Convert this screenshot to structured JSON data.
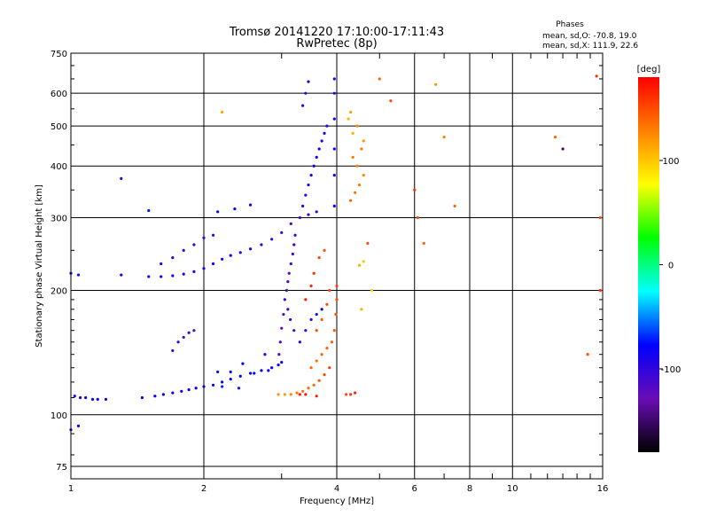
{
  "chart_data": {
    "type": "scatter",
    "title": "Tromsø 20141220 17:10:00-17:11:43",
    "subtitle": "RwPretec (8p)",
    "xlabel": "Frequency [MHz]",
    "ylabel": "Stationary phase Virtual Height [km]",
    "x_scale": "log",
    "y_scale": "log",
    "xlim": [
      1,
      16
    ],
    "ylim": [
      70,
      750
    ],
    "x_ticks": [
      1,
      2,
      4,
      6,
      8,
      10,
      16
    ],
    "x_minor_ticks": [
      3,
      5,
      7,
      9,
      11,
      12,
      13,
      14,
      15
    ],
    "y_ticks": [
      75,
      100,
      200,
      300,
      400,
      500,
      600,
      750
    ],
    "grid": true,
    "phases": {
      "header": "Phases",
      "o_line": "mean, sd,O: -70.8, 19.0",
      "x_line": "mean, sd,X: 111.9, 22.6"
    },
    "colorbar": {
      "label": "[deg]",
      "range": [
        -180,
        180
      ],
      "ticks": [
        -100,
        0,
        100
      ],
      "colormap": "rainbow",
      "colors": [
        "#000000",
        "#6a0cb4",
        "#0000ff",
        "#00ffff",
        "#00ff00",
        "#ffff00",
        "#ff8000",
        "#ff0000"
      ]
    },
    "series": [
      {
        "name": "O",
        "points": [
          [
            1.02,
            111,
            -88
          ],
          [
            1.05,
            110,
            -85
          ],
          [
            1.08,
            110,
            -82
          ],
          [
            1.12,
            109,
            -80
          ],
          [
            1.15,
            109,
            -83
          ],
          [
            1.2,
            109,
            -86
          ],
          [
            1.45,
            110,
            -80
          ],
          [
            1.55,
            111,
            -78
          ],
          [
            1.62,
            112,
            -80
          ],
          [
            1.7,
            113,
            -82
          ],
          [
            1.78,
            114,
            -79
          ],
          [
            1.85,
            115,
            -80
          ],
          [
            1.92,
            116,
            -82
          ],
          [
            2.0,
            117,
            -78
          ],
          [
            2.1,
            118,
            -80
          ],
          [
            2.2,
            120,
            -79
          ],
          [
            2.3,
            122,
            -81
          ],
          [
            2.42,
            124,
            -80
          ],
          [
            2.55,
            126,
            -78
          ],
          [
            2.7,
            128,
            -79
          ],
          [
            2.85,
            130,
            -82
          ],
          [
            2.95,
            132,
            -80
          ],
          [
            3.0,
            134,
            -83
          ],
          [
            2.8,
            128,
            -82
          ],
          [
            2.6,
            126,
            -80
          ],
          [
            2.3,
            127,
            -78
          ],
          [
            2.15,
            127,
            -80
          ],
          [
            2.45,
            133,
            -77
          ],
          [
            2.75,
            140,
            -75
          ],
          [
            1.0,
            220,
            -75
          ],
          [
            1.04,
            218,
            -73
          ],
          [
            1.3,
            218,
            -80
          ],
          [
            1.5,
            216,
            -84
          ],
          [
            1.6,
            216,
            -86
          ],
          [
            1.7,
            217,
            -88
          ],
          [
            1.8,
            219,
            -90
          ],
          [
            1.9,
            222,
            -87
          ],
          [
            2.0,
            226,
            -85
          ],
          [
            2.1,
            232,
            -83
          ],
          [
            2.2,
            238,
            -82
          ],
          [
            2.3,
            243,
            -85
          ],
          [
            2.42,
            247,
            -87
          ],
          [
            2.55,
            252,
            -90
          ],
          [
            2.7,
            258,
            -92
          ],
          [
            2.85,
            266,
            -100
          ],
          [
            3.0,
            276,
            -105
          ],
          [
            3.15,
            290,
            -108
          ],
          [
            3.3,
            300,
            -110
          ],
          [
            3.45,
            305,
            -108
          ],
          [
            3.6,
            310,
            -104
          ],
          [
            1.7,
            240,
            -95
          ],
          [
            1.8,
            250,
            -100
          ],
          [
            1.9,
            258,
            -102
          ],
          [
            2.0,
            268,
            -98
          ],
          [
            2.1,
            272,
            -97
          ],
          [
            1.6,
            232,
            -90
          ],
          [
            2.15,
            310,
            -75
          ],
          [
            2.35,
            315,
            -78
          ],
          [
            2.55,
            322,
            -80
          ],
          [
            1.5,
            312,
            -72
          ],
          [
            1.3,
            373,
            -95
          ],
          [
            3.05,
            190,
            -110
          ],
          [
            3.08,
            200,
            -112
          ],
          [
            3.1,
            210,
            -115
          ],
          [
            3.12,
            220,
            -118
          ],
          [
            3.15,
            232,
            -112
          ],
          [
            3.18,
            245,
            -110
          ],
          [
            3.2,
            258,
            -105
          ],
          [
            3.22,
            272,
            -102
          ],
          [
            3.03,
            175,
            -115
          ],
          [
            3.0,
            162,
            -118
          ],
          [
            2.98,
            150,
            -120
          ],
          [
            2.96,
            140,
            -115
          ],
          [
            3.1,
            180,
            -105
          ],
          [
            3.14,
            170,
            -100
          ],
          [
            3.2,
            160,
            -110
          ],
          [
            3.3,
            150,
            -100
          ],
          [
            3.4,
            160,
            -95
          ],
          [
            3.5,
            170,
            -90
          ],
          [
            3.6,
            175,
            -85
          ],
          [
            3.7,
            180,
            -80
          ],
          [
            3.35,
            320,
            -95
          ],
          [
            3.4,
            340,
            -100
          ],
          [
            3.45,
            360,
            -90
          ],
          [
            3.5,
            380,
            -85
          ],
          [
            3.55,
            400,
            -80
          ],
          [
            3.6,
            420,
            -82
          ],
          [
            3.65,
            440,
            -85
          ],
          [
            3.7,
            460,
            -88
          ],
          [
            3.75,
            480,
            -90
          ],
          [
            3.8,
            500,
            -92
          ],
          [
            3.35,
            560,
            -95
          ],
          [
            3.4,
            600,
            -100
          ],
          [
            3.45,
            640,
            -98
          ],
          [
            3.95,
            320,
            -78
          ],
          [
            3.95,
            380,
            -80
          ],
          [
            3.95,
            440,
            -82
          ],
          [
            3.95,
            520,
            -85
          ],
          [
            3.95,
            600,
            -88
          ],
          [
            3.95,
            650,
            -90
          ],
          [
            1.8,
            154,
            -105
          ],
          [
            1.85,
            158,
            -108
          ],
          [
            1.9,
            160,
            -110
          ],
          [
            1.7,
            143,
            -100
          ],
          [
            1.75,
            150,
            -102
          ],
          [
            2.2,
            117,
            -70
          ],
          [
            2.4,
            116,
            -72
          ],
          [
            1.0,
            92,
            -80
          ],
          [
            1.04,
            94,
            -78
          ]
        ]
      },
      {
        "name": "X",
        "points": [
          [
            2.95,
            112,
            120
          ],
          [
            3.05,
            112,
            118
          ],
          [
            3.15,
            112,
            125
          ],
          [
            3.25,
            113,
            130
          ],
          [
            3.35,
            114,
            135
          ],
          [
            3.45,
            116,
            138
          ],
          [
            3.55,
            118,
            140
          ],
          [
            3.65,
            121,
            145
          ],
          [
            3.75,
            125,
            150
          ],
          [
            3.85,
            130,
            155
          ],
          [
            3.5,
            130,
            140
          ],
          [
            3.6,
            135,
            135
          ],
          [
            3.7,
            140,
            140
          ],
          [
            3.8,
            145,
            138
          ],
          [
            3.9,
            150,
            142
          ],
          [
            3.95,
            160,
            145
          ],
          [
            3.98,
            175,
            148
          ],
          [
            4.0,
            190,
            150
          ],
          [
            4.0,
            205,
            155
          ],
          [
            3.6,
            160,
            150
          ],
          [
            3.7,
            170,
            148
          ],
          [
            3.8,
            185,
            150
          ],
          [
            3.85,
            200,
            152
          ],
          [
            3.4,
            190,
            170
          ],
          [
            3.5,
            205,
            165
          ],
          [
            3.55,
            220,
            160
          ],
          [
            3.65,
            240,
            150
          ],
          [
            3.75,
            250,
            145
          ],
          [
            4.3,
            330,
            140
          ],
          [
            4.4,
            345,
            135
          ],
          [
            4.5,
            360,
            130
          ],
          [
            4.6,
            380,
            125
          ],
          [
            4.45,
            400,
            128
          ],
          [
            4.35,
            420,
            132
          ],
          [
            4.55,
            440,
            130
          ],
          [
            4.6,
            460,
            120
          ],
          [
            4.35,
            480,
            110
          ],
          [
            4.45,
            500,
            125
          ],
          [
            4.25,
            520,
            105
          ],
          [
            4.3,
            540,
            115
          ],
          [
            4.6,
            235,
            100
          ],
          [
            4.5,
            230,
            110
          ],
          [
            4.55,
            180,
            110
          ],
          [
            4.2,
            112,
            150
          ],
          [
            4.3,
            112,
            160
          ],
          [
            4.4,
            113,
            165
          ],
          [
            3.3,
            112,
            170
          ],
          [
            3.4,
            112,
            172
          ],
          [
            3.6,
            111,
            168
          ],
          [
            2.2,
            540,
            115
          ],
          [
            4.8,
            200,
            95
          ],
          [
            4.7,
            260,
            150
          ],
          [
            5.0,
            650,
            140
          ],
          [
            5.3,
            575,
            150
          ],
          [
            6.0,
            350,
            160
          ],
          [
            6.1,
            300,
            150
          ],
          [
            6.3,
            260,
            140
          ],
          [
            6.7,
            630,
            120
          ],
          [
            7.0,
            470,
            130
          ],
          [
            7.4,
            320,
            140
          ],
          [
            12.5,
            470,
            140
          ],
          [
            14.8,
            140,
            150
          ],
          [
            15.8,
            200,
            160
          ],
          [
            15.8,
            300,
            150
          ],
          [
            15.5,
            660,
            160
          ],
          [
            13.0,
            440,
            -150
          ]
        ]
      }
    ]
  }
}
